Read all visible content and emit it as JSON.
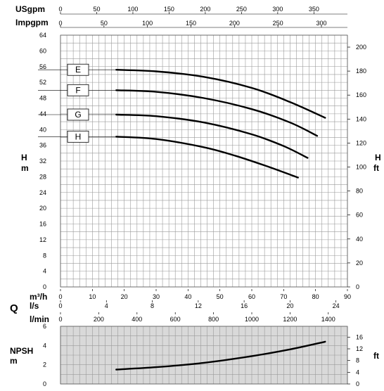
{
  "chart_data": {
    "type": "line",
    "top_axes": [
      {
        "name": "USgpm",
        "ticks": [
          0,
          50,
          100,
          150,
          200,
          250,
          300,
          350
        ]
      },
      {
        "name": "Impgpm",
        "ticks": [
          0,
          50,
          100,
          150,
          200,
          250,
          300
        ]
      }
    ],
    "head_chart": {
      "ylabel_left": "H\nm",
      "ylabel_right": "H\nft",
      "ylim_m": [
        0,
        64
      ],
      "yticks_m": [
        0,
        4,
        8,
        12,
        16,
        20,
        24,
        28,
        32,
        36,
        40,
        44,
        48,
        52,
        56,
        60,
        64
      ],
      "yticks_ft": [
        0,
        20,
        40,
        60,
        80,
        100,
        120,
        140,
        160,
        180,
        200
      ],
      "series": [
        {
          "name": "E",
          "x": [
            17.5,
            30,
            45,
            60,
            72,
            83
          ],
          "y": [
            55.2,
            54.8,
            53.4,
            50.6,
            47.0,
            43.0
          ]
        },
        {
          "name": "F",
          "x": [
            17.5,
            30,
            45,
            60,
            72,
            80.5
          ],
          "y": [
            50.0,
            49.6,
            48.0,
            45.2,
            41.8,
            38.4
          ]
        },
        {
          "name": "G",
          "x": [
            17.5,
            30,
            45,
            60,
            70,
            77.5
          ],
          "y": [
            43.8,
            43.4,
            41.8,
            38.8,
            35.8,
            32.8
          ]
        },
        {
          "name": "H",
          "x": [
            17.5,
            30,
            45,
            55,
            65,
            74.5
          ],
          "y": [
            38.2,
            37.6,
            35.5,
            33.3,
            30.6,
            27.8
          ]
        }
      ]
    },
    "flow_axes": {
      "label": "Q",
      "m3h": {
        "name": "m³/h",
        "ticks": [
          0,
          10,
          20,
          30,
          40,
          50,
          60,
          70,
          80,
          90
        ]
      },
      "ls": {
        "name": "l/s",
        "ticks": [
          0,
          4,
          8,
          12,
          16,
          20,
          24
        ]
      },
      "lmin": {
        "name": "l/min",
        "ticks": [
          0,
          200,
          400,
          600,
          800,
          1000,
          1200,
          1400
        ]
      }
    },
    "npsh_chart": {
      "ylabel_left": "NPSH\nm",
      "ylabel_right": "ft",
      "ylim_m": [
        0,
        6
      ],
      "yticks_m": [
        0,
        2,
        4,
        6
      ],
      "yticks_ft": [
        0,
        4,
        8,
        12,
        16
      ],
      "series": [
        {
          "name": "NPSH",
          "x": [
            17.5,
            30,
            45,
            60,
            72,
            83
          ],
          "y": [
            1.5,
            1.75,
            2.2,
            2.9,
            3.6,
            4.4
          ]
        }
      ]
    }
  }
}
